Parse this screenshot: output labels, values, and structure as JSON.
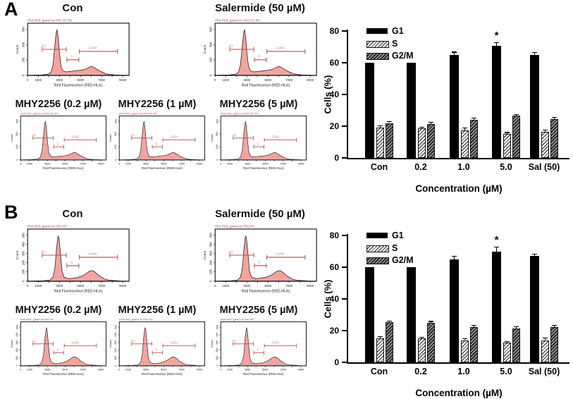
{
  "figure": {
    "panels": [
      {
        "label": "A",
        "flow_header": "Plot P03, gated on P01.R1.R2",
        "plots": [
          {
            "title": "Con"
          },
          {
            "title": "Salermide (50 µM)"
          },
          {
            "title": "MHY2256 (0.2 µM)"
          },
          {
            "title": "MHY2256 (1 µM)"
          },
          {
            "title": "MHY2256 (5 µM)"
          }
        ],
        "flow_axis": {
          "x_label": "Red Fluorescence (RED-HLin)",
          "y_label": "Count",
          "x_ticks": [
            "0",
            "1000",
            "3000",
            "5000",
            "7000",
            "9000"
          ],
          "y_ticks": [
            "0",
            "100",
            "300",
            "500"
          ]
        },
        "gate_labels": [
          "G1",
          "S",
          "G2/M"
        ],
        "hist_shape": [
          [
            2,
            0
          ],
          [
            14,
            0.5
          ],
          [
            20,
            2
          ],
          [
            23,
            6
          ],
          [
            25,
            22
          ],
          [
            26.5,
            55
          ],
          [
            28,
            88
          ],
          [
            29,
            97
          ],
          [
            30,
            83
          ],
          [
            31.5,
            45
          ],
          [
            33,
            18
          ],
          [
            35,
            9
          ],
          [
            38,
            7
          ],
          [
            42,
            8
          ],
          [
            46,
            9
          ],
          [
            50,
            10
          ],
          [
            54,
            11
          ],
          [
            57,
            13
          ],
          [
            60,
            16
          ],
          [
            63,
            19
          ],
          [
            65,
            17
          ],
          [
            68,
            13
          ],
          [
            71,
            9
          ],
          [
            74,
            6
          ],
          [
            77,
            3
          ],
          [
            81,
            1.5
          ],
          [
            86,
            0.5
          ],
          [
            95,
            0
          ]
        ]
      },
      {
        "label": "B",
        "flow_header": "Plot P03, gated on P02.R1",
        "plots": [
          {
            "title": "Con"
          },
          {
            "title": "Salermide (50 µM)"
          },
          {
            "title": "MHY2256 (0.2 µM)"
          },
          {
            "title": "MHY2256 (1 µM)"
          },
          {
            "title": "MHY2256 (5 µM)"
          }
        ],
        "flow_axis": {
          "x_label": "Red Fluorescence (RED-HLin)",
          "y_label": "Count",
          "x_ticks": [
            "0",
            "1000",
            "3000",
            "5000",
            "7000",
            "9000"
          ],
          "y_ticks": [
            "0",
            "100",
            "200",
            "300",
            "400",
            "500"
          ]
        },
        "gate_labels": [
          "G1",
          "S",
          "G2/M"
        ],
        "hist_shape": [
          [
            2,
            0
          ],
          [
            16,
            0.5
          ],
          [
            22,
            2
          ],
          [
            25,
            8
          ],
          [
            27,
            30
          ],
          [
            28.5,
            70
          ],
          [
            30,
            96
          ],
          [
            31,
            90
          ],
          [
            32.5,
            55
          ],
          [
            34,
            20
          ],
          [
            36,
            8
          ],
          [
            40,
            5
          ],
          [
            45,
            6
          ],
          [
            50,
            8
          ],
          [
            54,
            11
          ],
          [
            58,
            16
          ],
          [
            61,
            21
          ],
          [
            64,
            22
          ],
          [
            67,
            18
          ],
          [
            70,
            12
          ],
          [
            73,
            8
          ],
          [
            76,
            4
          ],
          [
            80,
            2
          ],
          [
            86,
            1
          ],
          [
            93,
            0
          ]
        ]
      }
    ]
  },
  "chart_data": [
    {
      "type": "bar",
      "panel": "A",
      "title": "",
      "categories": [
        "Con",
        "0.2",
        "1.0",
        "5.0",
        "Sal (50)"
      ],
      "series": [
        {
          "name": "G1",
          "values": [
            60,
            60,
            65,
            70.5,
            65
          ],
          "errors": [
            0,
            0,
            1.5,
            2,
            1.2
          ]
        },
        {
          "name": "S",
          "values": [
            19,
            18.5,
            17.5,
            15,
            16.5
          ],
          "errors": [
            1,
            0.8,
            1.2,
            0.8,
            1
          ]
        },
        {
          "name": "G2/M",
          "values": [
            22,
            21.5,
            24,
            26.5,
            24.5
          ],
          "errors": [
            0.6,
            0.8,
            1,
            0.8,
            0.7
          ]
        }
      ],
      "significance": {
        "category": "5.0",
        "series": "G1",
        "symbol": "*"
      },
      "xlabel": "Concentration (µM)",
      "ylabel": "Cells (%)",
      "ylim": [
        0,
        80
      ],
      "yticks": [
        0,
        20,
        40,
        60,
        80
      ],
      "legend_position": "upper-left",
      "grid": false
    },
    {
      "type": "bar",
      "panel": "B",
      "title": "",
      "categories": [
        "Con",
        "0.2",
        "1.0",
        "5.0",
        "Sal (50)"
      ],
      "series": [
        {
          "name": "G1",
          "values": [
            60,
            60,
            65,
            70,
            67
          ],
          "errors": [
            0,
            0,
            1.8,
            2.5,
            1.2
          ]
        },
        {
          "name": "S",
          "values": [
            15,
            15,
            14,
            12.5,
            14
          ],
          "errors": [
            1,
            0.6,
            0.6,
            0.6,
            1.2
          ]
        },
        {
          "name": "G2/M",
          "values": [
            25.2,
            24.8,
            22.2,
            21.3,
            22.2
          ],
          "errors": [
            0.7,
            0.8,
            1,
            0.8,
            0.8
          ]
        }
      ],
      "significance": {
        "category": "5.0",
        "series": "G1",
        "symbol": "*"
      },
      "xlabel": "Concentration (µM)",
      "ylabel": "Cells (%)",
      "ylim": [
        0,
        80
      ],
      "yticks": [
        0,
        20,
        40,
        60,
        80
      ],
      "legend_position": "upper-left",
      "grid": false
    }
  ],
  "colors": {
    "bar_g1": "#000000",
    "hist_fill": "#f2a4a0",
    "hist_line": "#1a1a1a",
    "gate_line": "#b84f52",
    "gate_label": "#cf7d7d",
    "header_text": "#a94442"
  }
}
